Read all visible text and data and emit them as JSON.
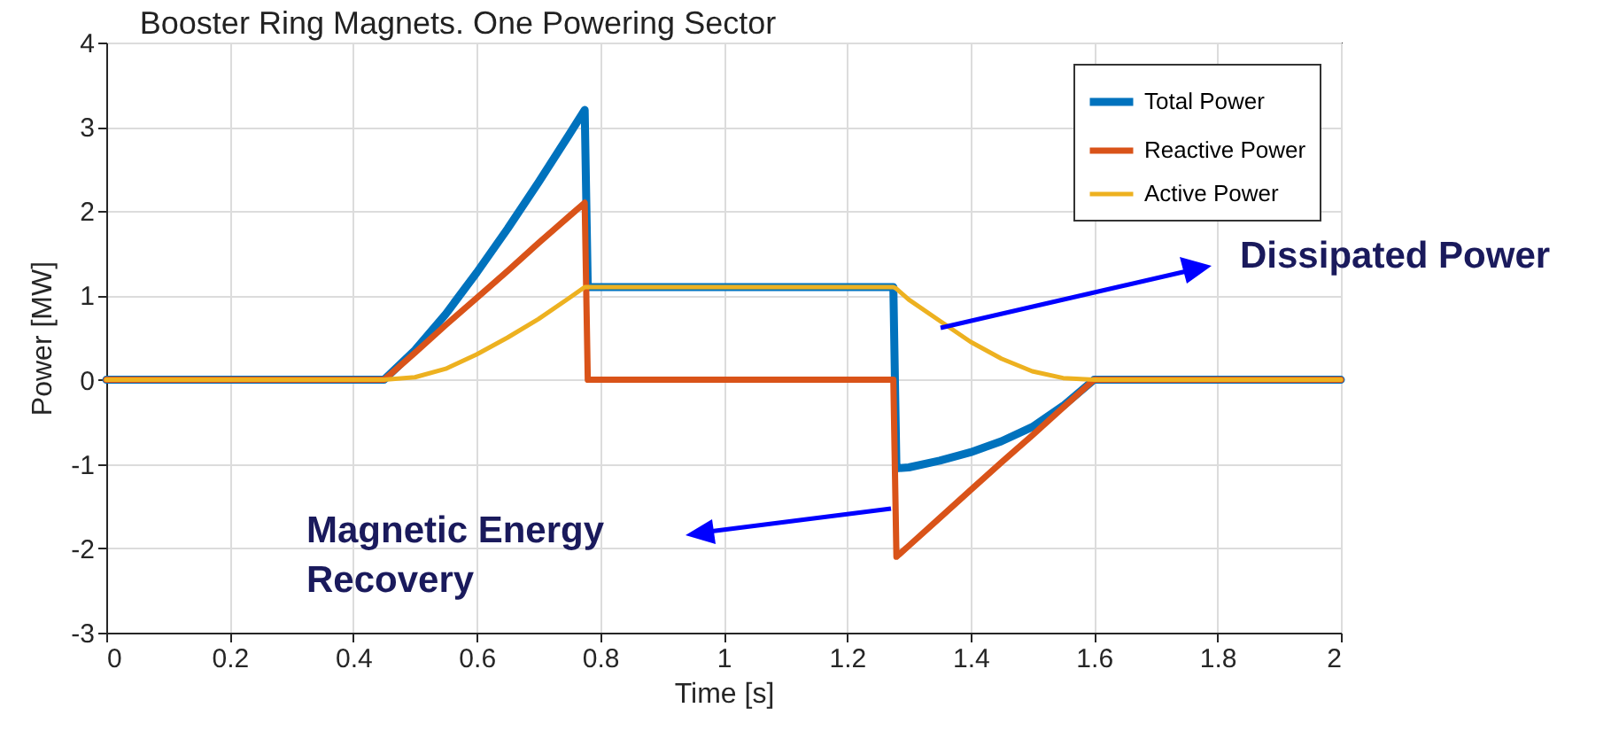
{
  "chart_data": {
    "type": "line",
    "title": "Booster Ring Magnets. One Powering Sector",
    "xlabel": "Time [s]",
    "ylabel": "Power [MW]",
    "x": [
      0,
      0.45,
      0.5,
      0.55,
      0.6,
      0.65,
      0.7,
      0.75,
      0.775,
      0.78,
      1.275,
      1.28,
      1.3,
      1.35,
      1.4,
      1.45,
      1.5,
      1.55,
      1.6,
      2
    ],
    "series": [
      {
        "name": "Total Power",
        "color": "#0072bd",
        "values": [
          0,
          0,
          0.35,
          0.78,
          1.27,
          1.79,
          2.34,
          2.91,
          3.2,
          1.1,
          1.1,
          -1.05,
          -1.04,
          -0.96,
          -0.86,
          -0.73,
          -0.56,
          -0.31,
          0,
          0
        ]
      },
      {
        "name": "Reactive Power",
        "color": "#d95319",
        "values": [
          0,
          0,
          0.32,
          0.65,
          0.97,
          1.29,
          1.62,
          1.94,
          2.1,
          0,
          0,
          -2.1,
          -1.97,
          -1.64,
          -1.31,
          -0.98,
          -0.66,
          -0.33,
          0,
          0
        ]
      },
      {
        "name": "Active Power",
        "color": "#edb120",
        "values": [
          0,
          0,
          0.03,
          0.13,
          0.3,
          0.5,
          0.72,
          0.97,
          1.1,
          1.1,
          1.1,
          1.08,
          0.95,
          0.7,
          0.45,
          0.25,
          0.1,
          0.02,
          0,
          0
        ]
      }
    ],
    "xlim": [
      0,
      2
    ],
    "xticks": [
      0,
      0.2,
      0.4,
      0.6,
      0.8,
      1,
      1.2,
      1.4,
      1.6,
      1.8,
      2
    ],
    "ylim": [
      -3,
      4
    ],
    "yticks": [
      -3,
      -2,
      -1,
      0,
      1,
      2,
      3,
      4
    ],
    "grid": true,
    "legend": "top right",
    "marker": "none",
    "line_style": "solid",
    "annotations": [
      "Dissipated Power",
      "Magnetic Energy Recovery"
    ]
  }
}
